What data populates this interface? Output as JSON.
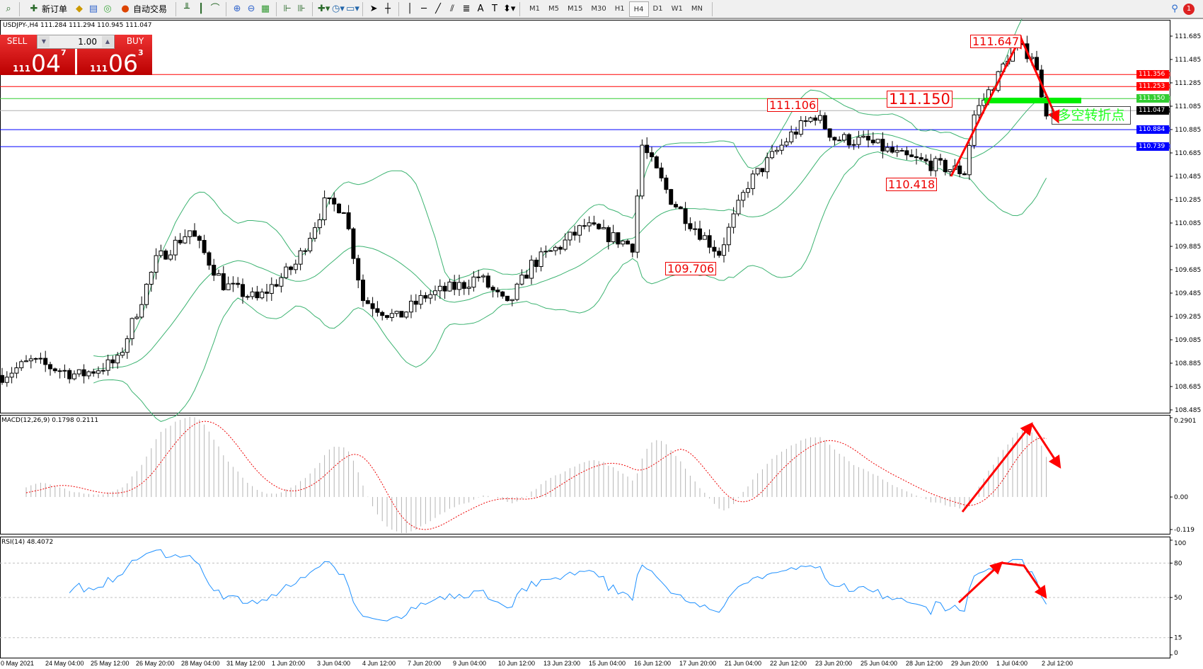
{
  "toolbar": {
    "new_order": "新订单",
    "auto_trading": "自动交易",
    "timeframes": [
      "M1",
      "M5",
      "M15",
      "M30",
      "H1",
      "H4",
      "D1",
      "W1",
      "MN"
    ],
    "selected_timeframe": "H4",
    "text_tool": "A",
    "notification_count": "1"
  },
  "chart_header": "USDJPY-,H4  111.284 111.294 110.945 111.047",
  "one_click": {
    "sell_label": "SELL",
    "buy_label": "BUY",
    "lot": "1.00",
    "sell_prefix": "111",
    "sell_big": "04",
    "sell_sup": "7",
    "buy_prefix": "111",
    "buy_big": "06",
    "buy_sup": "3"
  },
  "price_axis": [
    "111.685",
    "111.485",
    "111.285",
    "111.085",
    "110.885",
    "110.685",
    "110.485",
    "110.285",
    "110.085",
    "109.885",
    "109.685",
    "109.485",
    "109.285",
    "109.085",
    "108.885",
    "108.685",
    "108.485"
  ],
  "level_lines": [
    {
      "price": "111.356",
      "color": "#ff0000"
    },
    {
      "price": "111.253",
      "color": "#ff0000"
    },
    {
      "price": "111.150",
      "color": "#32cd32"
    },
    {
      "price": "111.047",
      "color": "#000000"
    },
    {
      "price": "110.884",
      "color": "#0000ff"
    },
    {
      "price": "110.739",
      "color": "#0000ff"
    }
  ],
  "annotations": {
    "high": "111.647",
    "pivot": "111.150",
    "swing_high": "111.106",
    "swing_low": "110.418",
    "low": "109.706",
    "turning_point": "多空转折点"
  },
  "macd": {
    "label": "MACD(12,26,9) 0.1798 0.2111",
    "axis": [
      "0.2901",
      "0.00",
      "-0.119"
    ],
    "range": [
      -0.119,
      0.2901
    ]
  },
  "rsi": {
    "label": "RSI(14) 48.4072",
    "axis": [
      "100",
      "80",
      "50",
      "15",
      "0"
    ],
    "levels": [
      80,
      50,
      15
    ]
  },
  "time_axis": [
    "0 May 2021",
    "24 May 04:00",
    "25 May 12:00",
    "26 May 20:00",
    "28 May 04:00",
    "31 May 12:00",
    "1 Jun 20:00",
    "3 Jun 04:00",
    "4 Jun 12:00",
    "7 Jun 20:00",
    "9 Jun 04:00",
    "10 Jun 12:00",
    "13 Jun 23:00",
    "15 Jun 04:00",
    "16 Jun 12:00",
    "17 Jun 20:00",
    "21 Jun 04:00",
    "22 Jun 12:00",
    "23 Jun 20:00",
    "25 Jun 04:00",
    "28 Jun 12:00",
    "29 Jun 20:00",
    "1 Jul 04:00",
    "2 Jul 12:00"
  ],
  "chart_data": {
    "type": "candlestick",
    "symbol": "USDJPY-",
    "timeframe": "H4",
    "ylim": [
      108.485,
      111.685
    ],
    "price_path": [
      [
        0,
        108.78
      ],
      [
        6,
        108.9
      ],
      [
        16,
        108.78
      ],
      [
        24,
        108.9
      ],
      [
        32,
        109.76
      ],
      [
        39,
        110.02
      ],
      [
        46,
        109.56
      ],
      [
        53,
        109.43
      ],
      [
        61,
        109.73
      ],
      [
        67,
        110.25
      ],
      [
        71,
        110.22
      ],
      [
        75,
        109.43
      ],
      [
        82,
        109.27
      ],
      [
        88,
        109.46
      ],
      [
        96,
        109.56
      ],
      [
        99,
        109.63
      ],
      [
        105,
        109.37
      ],
      [
        110,
        109.73
      ],
      [
        116,
        109.89
      ],
      [
        121,
        110.06
      ],
      [
        131,
        109.89
      ],
      [
        133,
        110.75
      ],
      [
        139,
        110.29
      ],
      [
        143,
        110.09
      ],
      [
        149,
        109.83
      ],
      [
        155,
        110.42
      ],
      [
        164,
        110.84
      ],
      [
        169,
        111.01
      ],
      [
        173,
        110.81
      ],
      [
        180,
        110.78
      ],
      [
        187,
        110.65
      ],
      [
        194,
        110.58
      ],
      [
        200,
        110.52
      ],
      [
        202,
        111.01
      ],
      [
        207,
        111.34
      ],
      [
        210,
        111.6
      ],
      [
        214,
        111.53
      ],
      [
        217,
        111.05
      ]
    ],
    "indicators": [
      "Bollinger Bands(20,2)",
      "MACD(12,26,9)",
      "RSI(14)"
    ]
  }
}
